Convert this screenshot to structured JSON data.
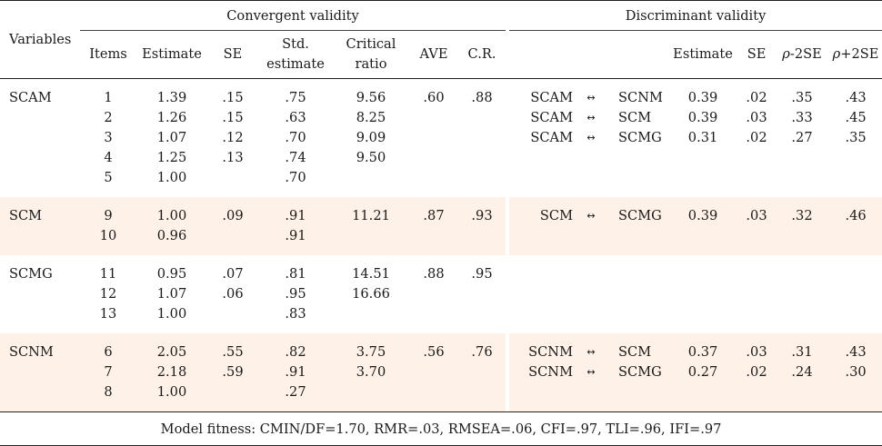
{
  "header": {
    "variables": "Variables",
    "convergent": "Convergent validity",
    "discriminant": "Discriminant validity",
    "items": "Items",
    "estimate": "Estimate",
    "se": "SE",
    "std_estimate_1": "Std.",
    "std_estimate_2": "estimate",
    "critical_1": "Critical",
    "critical_2": "ratio",
    "ave": "AVE",
    "cr": "C.R.",
    "d_estimate": "Estimate",
    "d_se": "SE",
    "rho_minus_sym": "ρ",
    "rho_minus_rest": "-2SE",
    "rho_plus_sym": "ρ",
    "rho_plus_rest": "+2SE"
  },
  "arrow": "↔",
  "groups": [
    {
      "name": "SCAM",
      "shaded": false,
      "rows": [
        {
          "item": "1",
          "est": "1.39",
          "se": ".15",
          "std": ".75",
          "cr": "9.56",
          "ave": ".60",
          "crel": ".88",
          "d_a": "SCAM",
          "d_b": "SCNM",
          "d_est": "0.39",
          "d_se": ".02",
          "lo": ".35",
          "hi": ".43"
        },
        {
          "item": "2",
          "est": "1.26",
          "se": ".15",
          "std": ".63",
          "cr": "8.25",
          "ave": "",
          "crel": "",
          "d_a": "SCAM",
          "d_b": "SCM",
          "d_est": "0.39",
          "d_se": ".03",
          "lo": ".33",
          "hi": ".45"
        },
        {
          "item": "3",
          "est": "1.07",
          "se": ".12",
          "std": ".70",
          "cr": "9.09",
          "ave": "",
          "crel": "",
          "d_a": "SCAM",
          "d_b": "SCMG",
          "d_est": "0.31",
          "d_se": ".02",
          "lo": ".27",
          "hi": ".35"
        },
        {
          "item": "4",
          "est": "1.25",
          "se": ".13",
          "std": ".74",
          "cr": "9.50",
          "ave": "",
          "crel": "",
          "d_a": "",
          "d_b": "",
          "d_est": "",
          "d_se": "",
          "lo": "",
          "hi": ""
        },
        {
          "item": "5",
          "est": "1.00",
          "se": "",
          "std": ".70",
          "cr": "",
          "ave": "",
          "crel": "",
          "d_a": "",
          "d_b": "",
          "d_est": "",
          "d_se": "",
          "lo": "",
          "hi": ""
        }
      ]
    },
    {
      "name": "SCM",
      "shaded": true,
      "rows": [
        {
          "item": "9",
          "est": "1.00",
          "se": ".09",
          "std": ".91",
          "cr": "11.21",
          "ave": ".87",
          "crel": ".93",
          "d_a": "SCM",
          "d_b": "SCMG",
          "d_est": "0.39",
          "d_se": ".03",
          "lo": ".32",
          "hi": ".46"
        },
        {
          "item": "10",
          "est": "0.96",
          "se": "",
          "std": ".91",
          "cr": "",
          "ave": "",
          "crel": "",
          "d_a": "",
          "d_b": "",
          "d_est": "",
          "d_se": "",
          "lo": "",
          "hi": ""
        }
      ]
    },
    {
      "name": "SCMG",
      "shaded": false,
      "rows": [
        {
          "item": "11",
          "est": "0.95",
          "se": ".07",
          "std": ".81",
          "cr": "14.51",
          "ave": ".88",
          "crel": ".95",
          "d_a": "",
          "d_b": "",
          "d_est": "",
          "d_se": "",
          "lo": "",
          "hi": ""
        },
        {
          "item": "12",
          "est": "1.07",
          "se": ".06",
          "std": ".95",
          "cr": "16.66",
          "ave": "",
          "crel": "",
          "d_a": "",
          "d_b": "",
          "d_est": "",
          "d_se": "",
          "lo": "",
          "hi": ""
        },
        {
          "item": "13",
          "est": "1.00",
          "se": "",
          "std": ".83",
          "cr": "",
          "ave": "",
          "crel": "",
          "d_a": "",
          "d_b": "",
          "d_est": "",
          "d_se": "",
          "lo": "",
          "hi": ""
        }
      ]
    },
    {
      "name": "SCNM",
      "shaded": true,
      "rows": [
        {
          "item": "6",
          "est": "2.05",
          "se": ".55",
          "std": ".82",
          "cr": "3.75",
          "ave": ".56",
          "crel": ".76",
          "d_a": "SCNM",
          "d_b": "SCM",
          "d_est": "0.37",
          "d_se": ".03",
          "lo": ".31",
          "hi": ".43"
        },
        {
          "item": "7",
          "est": "2.18",
          "se": ".59",
          "std": ".91",
          "cr": "3.70",
          "ave": "",
          "crel": "",
          "d_a": "SCNM",
          "d_b": "SCMG",
          "d_est": "0.27",
          "d_se": ".02",
          "lo": ".24",
          "hi": ".30"
        },
        {
          "item": "8",
          "est": "1.00",
          "se": "",
          "std": ".27",
          "cr": "",
          "ave": "",
          "crel": "",
          "d_a": "",
          "d_b": "",
          "d_est": "",
          "d_se": "",
          "lo": "",
          "hi": ""
        }
      ]
    }
  ],
  "footer": "Model fitness: CMIN/DF=1.70, RMR=.03, RMSEA=.06, CFI=.97, TLI=.96, IFI=.97"
}
